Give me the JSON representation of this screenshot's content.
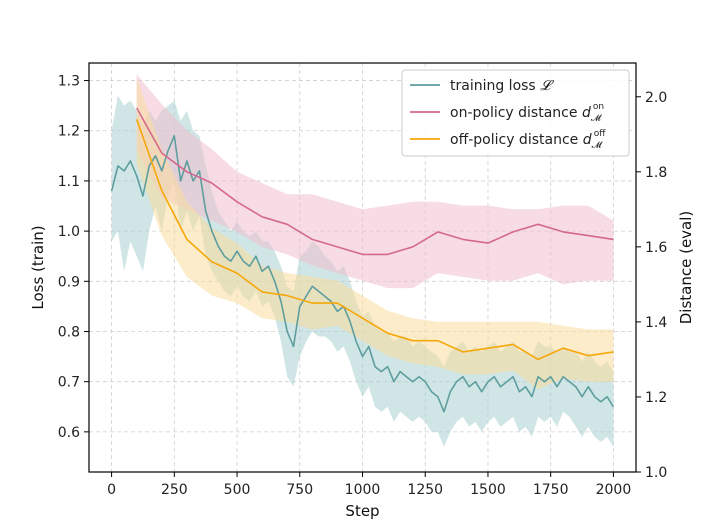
{
  "chart_data": {
    "type": "line",
    "xlabel": "Step",
    "ylabel_left": "Loss (train)",
    "ylabel_right": "Distance (eval)",
    "xlim": [
      -90,
      2090
    ],
    "ylim_left": [
      0.52,
      1.335
    ],
    "ylim_right": [
      1.0,
      2.09
    ],
    "x_ticks": [
      0,
      250,
      500,
      750,
      1000,
      1250,
      1500,
      1750,
      2000
    ],
    "y_left_ticks": [
      "0.6",
      "0.7",
      "0.8",
      "0.9",
      "1.0",
      "1.1",
      "1.2",
      "1.3"
    ],
    "y_right_ticks": [
      "1.0",
      "1.2",
      "1.4",
      "1.6",
      "1.8",
      "2.0"
    ],
    "grid": true,
    "legend_position": "top-right",
    "legend": [
      {
        "label": "training loss",
        "math": "𝓛",
        "color": "#5e9e9e"
      },
      {
        "label": "on-policy distance",
        "math": "d",
        "sub": "𝓜",
        "sup": "on",
        "color": "#d4698e"
      },
      {
        "label": "off-policy distance",
        "math": "d",
        "sub": "𝓜",
        "sup": "off",
        "color": "#f5a80a"
      }
    ],
    "series": [
      {
        "axis": "left",
        "color": "#5e9e9e",
        "band_color": "#a9cfcf",
        "x": [
          0,
          25,
          50,
          75,
          100,
          125,
          150,
          175,
          200,
          225,
          250,
          275,
          300,
          325,
          350,
          375,
          400,
          425,
          450,
          475,
          500,
          525,
          550,
          575,
          600,
          625,
          650,
          675,
          700,
          725,
          750,
          775,
          800,
          825,
          850,
          875,
          900,
          925,
          950,
          975,
          1000,
          1025,
          1050,
          1075,
          1100,
          1125,
          1150,
          1175,
          1200,
          1225,
          1250,
          1275,
          1300,
          1325,
          1350,
          1375,
          1400,
          1425,
          1450,
          1475,
          1500,
          1525,
          1550,
          1575,
          1600,
          1625,
          1650,
          1675,
          1700,
          1725,
          1750,
          1775,
          1800,
          1825,
          1850,
          1875,
          1900,
          1925,
          1950,
          1975,
          2000
        ],
        "y": [
          1.08,
          1.13,
          1.12,
          1.14,
          1.11,
          1.07,
          1.13,
          1.15,
          1.12,
          1.16,
          1.19,
          1.1,
          1.14,
          1.1,
          1.12,
          1.04,
          1.0,
          0.97,
          0.95,
          0.94,
          0.96,
          0.94,
          0.93,
          0.95,
          0.92,
          0.93,
          0.9,
          0.86,
          0.8,
          0.77,
          0.85,
          0.87,
          0.89,
          0.88,
          0.87,
          0.86,
          0.84,
          0.85,
          0.82,
          0.78,
          0.75,
          0.77,
          0.73,
          0.72,
          0.73,
          0.7,
          0.72,
          0.71,
          0.7,
          0.71,
          0.7,
          0.68,
          0.67,
          0.64,
          0.68,
          0.7,
          0.71,
          0.69,
          0.7,
          0.68,
          0.7,
          0.71,
          0.69,
          0.7,
          0.71,
          0.68,
          0.69,
          0.67,
          0.71,
          0.7,
          0.71,
          0.69,
          0.71,
          0.7,
          0.69,
          0.67,
          0.69,
          0.67,
          0.66,
          0.67,
          0.65
        ],
        "upper": [
          1.2,
          1.27,
          1.25,
          1.26,
          1.24,
          1.21,
          1.24,
          1.22,
          1.24,
          1.25,
          1.26,
          1.22,
          1.24,
          1.2,
          1.19,
          1.13,
          1.08,
          1.04,
          1.02,
          1.0,
          1.02,
          1.0,
          0.99,
          1.0,
          0.98,
          0.98,
          0.96,
          0.93,
          0.89,
          0.88,
          0.95,
          0.96,
          0.98,
          0.97,
          0.95,
          0.94,
          0.92,
          0.93,
          0.9,
          0.86,
          0.83,
          0.84,
          0.81,
          0.8,
          0.8,
          0.78,
          0.79,
          0.79,
          0.77,
          0.78,
          0.77,
          0.76,
          0.75,
          0.73,
          0.76,
          0.77,
          0.78,
          0.76,
          0.77,
          0.76,
          0.77,
          0.78,
          0.76,
          0.77,
          0.78,
          0.76,
          0.76,
          0.75,
          0.78,
          0.77,
          0.77,
          0.76,
          0.77,
          0.76,
          0.76,
          0.74,
          0.76,
          0.74,
          0.73,
          0.74,
          0.72
        ],
        "lower": [
          0.98,
          1.0,
          0.92,
          0.98,
          0.95,
          0.92,
          1.0,
          1.05,
          1.0,
          1.07,
          1.1,
          1.0,
          1.04,
          1.0,
          1.03,
          0.95,
          0.92,
          0.9,
          0.88,
          0.87,
          0.89,
          0.87,
          0.86,
          0.88,
          0.85,
          0.86,
          0.83,
          0.78,
          0.71,
          0.69,
          0.75,
          0.78,
          0.8,
          0.79,
          0.79,
          0.78,
          0.76,
          0.77,
          0.74,
          0.7,
          0.67,
          0.69,
          0.65,
          0.64,
          0.65,
          0.62,
          0.64,
          0.63,
          0.62,
          0.63,
          0.62,
          0.6,
          0.6,
          0.57,
          0.6,
          0.62,
          0.63,
          0.61,
          0.62,
          0.6,
          0.62,
          0.63,
          0.61,
          0.62,
          0.63,
          0.6,
          0.61,
          0.59,
          0.63,
          0.62,
          0.63,
          0.61,
          0.64,
          0.63,
          0.61,
          0.59,
          0.61,
          0.59,
          0.58,
          0.59,
          0.57
        ]
      },
      {
        "axis": "right",
        "color": "#d4698e",
        "band_color": "#f1bfd0",
        "x": [
          100,
          200,
          300,
          400,
          500,
          600,
          700,
          800,
          900,
          1000,
          1100,
          1200,
          1300,
          1400,
          1500,
          1600,
          1700,
          1800,
          1900,
          2000
        ],
        "y": [
          1.97,
          1.85,
          1.8,
          1.77,
          1.72,
          1.68,
          1.66,
          1.62,
          1.6,
          1.58,
          1.58,
          1.6,
          1.64,
          1.62,
          1.61,
          1.64,
          1.66,
          1.64,
          1.63,
          1.62
        ],
        "upper": [
          2.06,
          1.98,
          1.91,
          1.86,
          1.8,
          1.77,
          1.74,
          1.74,
          1.72,
          1.7,
          1.71,
          1.72,
          1.72,
          1.71,
          1.71,
          1.7,
          1.7,
          1.71,
          1.71,
          1.67
        ],
        "lower": [
          1.86,
          1.73,
          1.7,
          1.67,
          1.64,
          1.6,
          1.58,
          1.55,
          1.53,
          1.51,
          1.49,
          1.49,
          1.53,
          1.52,
          1.51,
          1.51,
          1.53,
          1.5,
          1.51,
          1.51
        ]
      },
      {
        "axis": "right",
        "color": "#f5a80a",
        "band_color": "#fadc9c",
        "x": [
          100,
          200,
          300,
          400,
          500,
          600,
          700,
          800,
          900,
          1000,
          1100,
          1200,
          1300,
          1400,
          1500,
          1600,
          1700,
          1800,
          1900,
          2000
        ],
        "y": [
          1.94,
          1.75,
          1.62,
          1.56,
          1.53,
          1.48,
          1.47,
          1.45,
          1.45,
          1.41,
          1.37,
          1.35,
          1.35,
          1.32,
          1.33,
          1.34,
          1.3,
          1.33,
          1.31,
          1.32
        ],
        "upper": [
          2.05,
          1.86,
          1.72,
          1.65,
          1.61,
          1.55,
          1.53,
          1.52,
          1.51,
          1.47,
          1.43,
          1.41,
          1.4,
          1.4,
          1.4,
          1.4,
          1.4,
          1.39,
          1.38,
          1.38
        ],
        "lower": [
          1.82,
          1.63,
          1.52,
          1.47,
          1.45,
          1.41,
          1.4,
          1.38,
          1.39,
          1.35,
          1.31,
          1.29,
          1.28,
          1.26,
          1.26,
          1.27,
          1.22,
          1.25,
          1.24,
          1.24
        ]
      }
    ]
  }
}
